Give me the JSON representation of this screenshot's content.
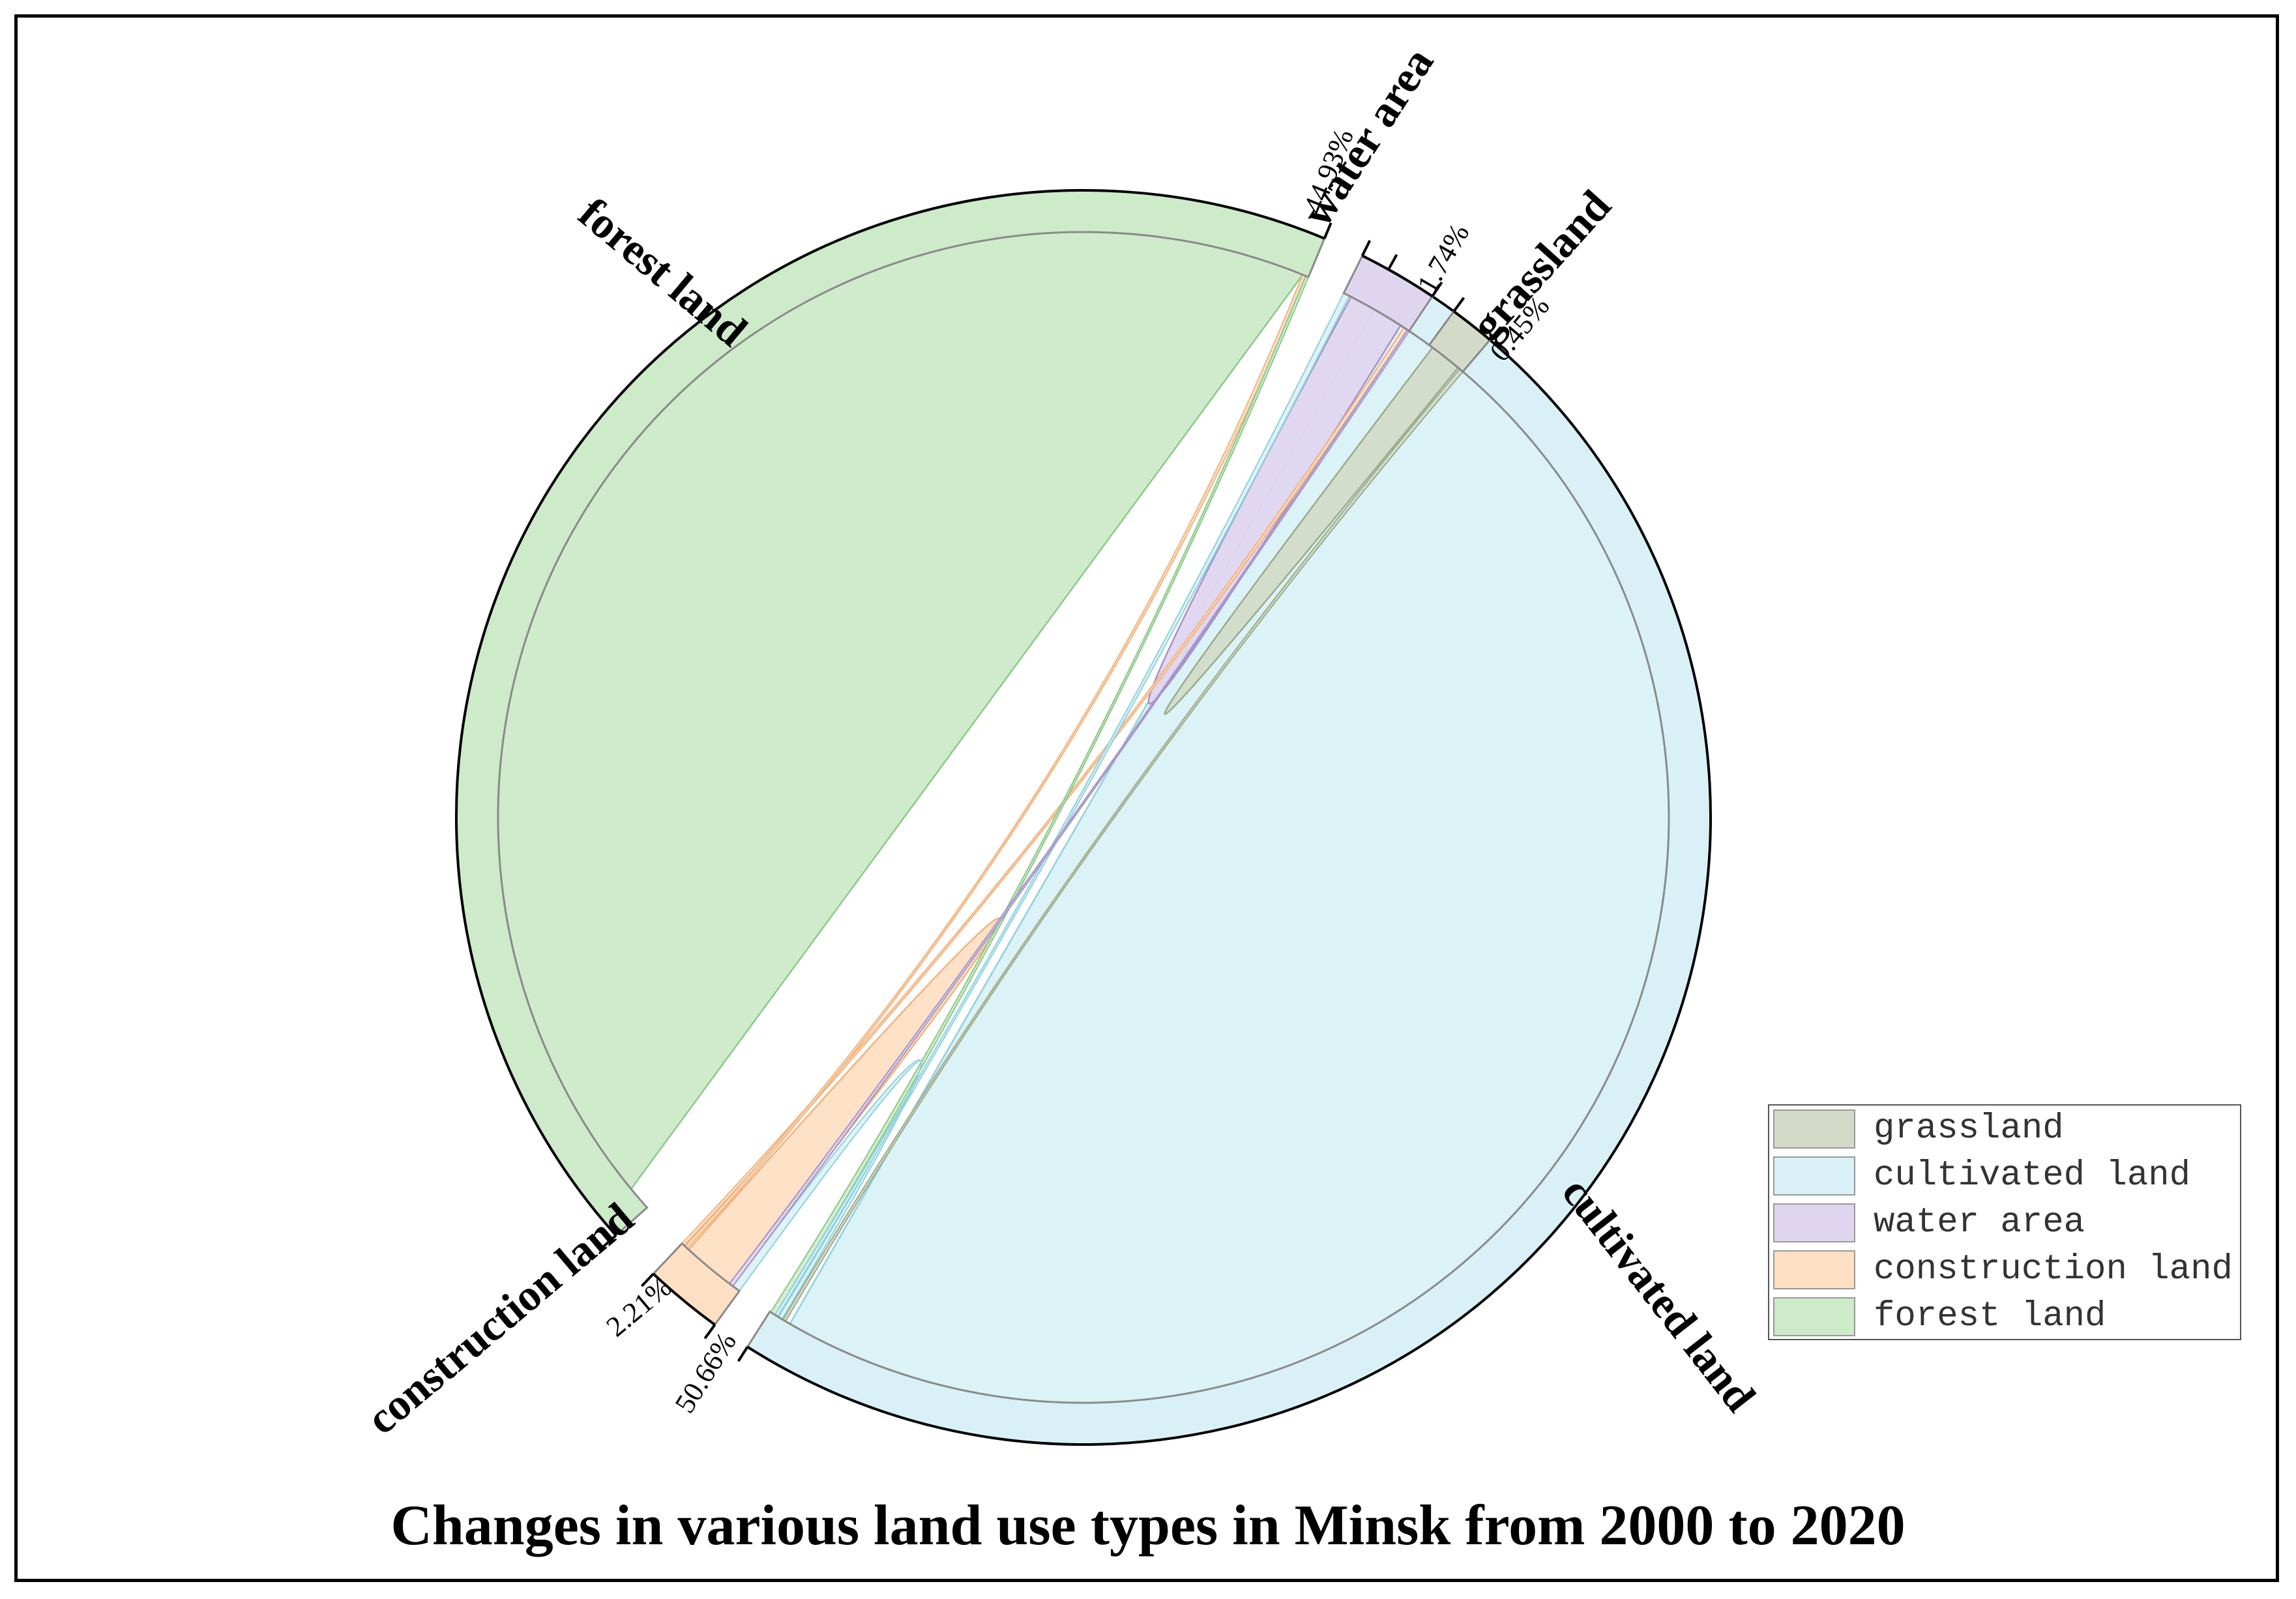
{
  "chart_data": {
    "type": "chord",
    "title": "Changes in various land use types in Minsk from 2000 to 2020",
    "categories": [
      "grassland",
      "cultivated land",
      "water area",
      "construction land",
      "forest land"
    ],
    "colors": {
      "grassland": "#d3dbc8",
      "cultivated land": "#d9f1f6",
      "water area": "#e0d5ef",
      "construction land": "#fde0c4",
      "forest land": "#cdeac9"
    },
    "edge_colors": {
      "grassland": "#9caa8c",
      "cultivated land": "#8fd1de",
      "water area": "#a594c7",
      "construction land": "#f4b27c",
      "forest land": "#8dc98a"
    },
    "percentages": {
      "cultivated land": "50.66%",
      "forest land": "44.93%",
      "construction land": "2.21%",
      "water area": "1.74%",
      "grassland": "0.45%"
    },
    "legend": {
      "items": [
        "grassland",
        "cultivated land",
        "water area",
        "construction land",
        "forest land"
      ],
      "position": "bottom-right"
    }
  }
}
